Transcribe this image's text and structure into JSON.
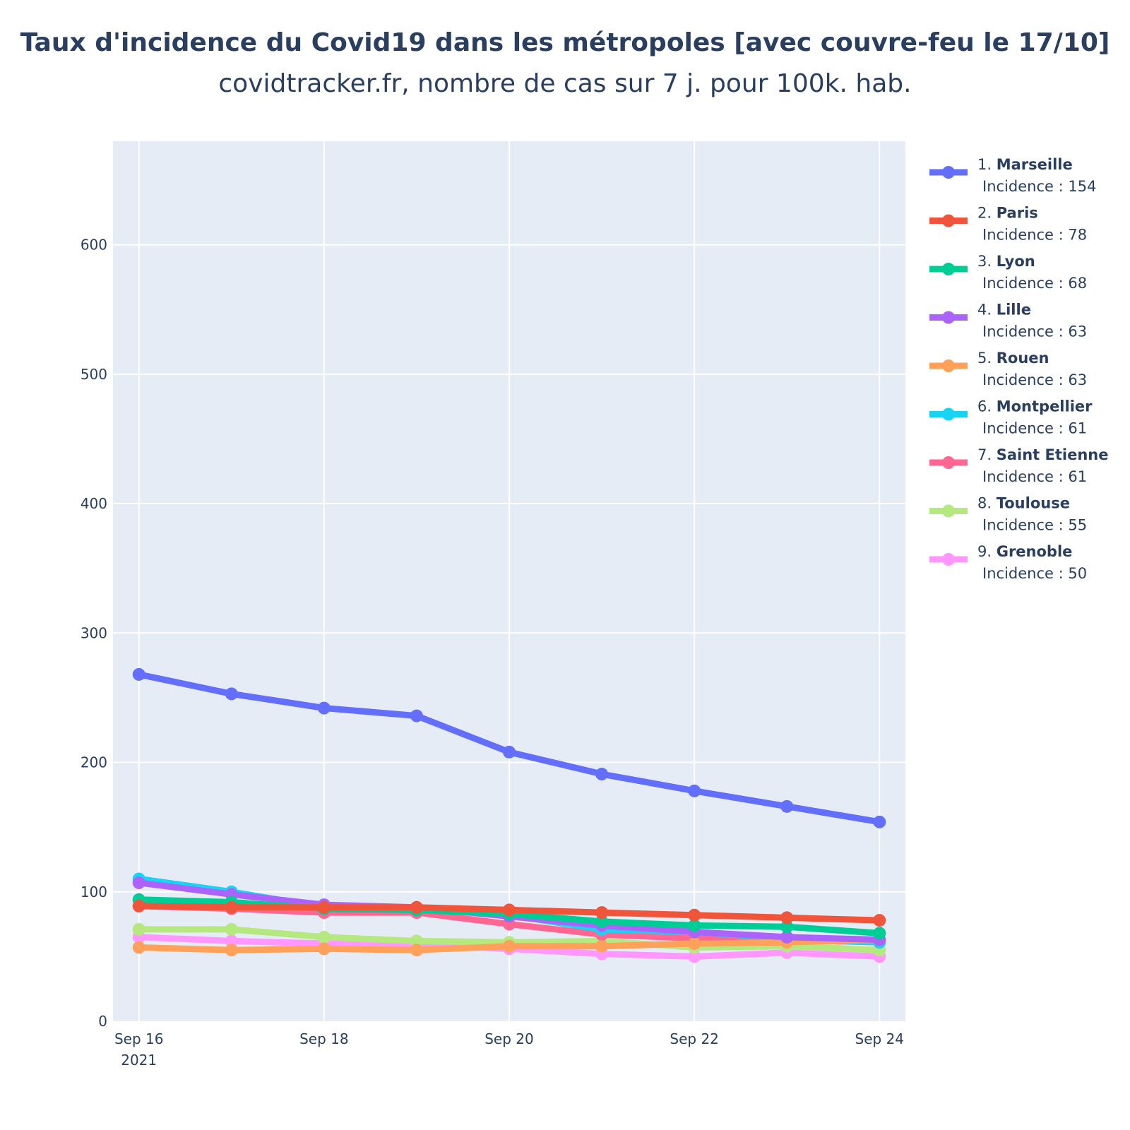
{
  "chart_data": {
    "type": "line",
    "title": "Taux d'incidence du Covid19 dans les métropoles [avec couvre-feu le 17/10]",
    "subtitle": "covidtracker.fr, nombre de cas sur 7 j. pour 100k. hab.",
    "x": [
      "2021-09-16",
      "2021-09-17",
      "2021-09-18",
      "2021-09-19",
      "2021-09-20",
      "2021-09-21",
      "2021-09-22",
      "2021-09-23",
      "2021-09-24"
    ],
    "x_ticks": [
      {
        "date": "2021-09-16",
        "label": "Sep 16",
        "sublabel": "2021"
      },
      {
        "date": "2021-09-18",
        "label": "Sep 18",
        "sublabel": ""
      },
      {
        "date": "2021-09-20",
        "label": "Sep 20",
        "sublabel": ""
      },
      {
        "date": "2021-09-22",
        "label": "Sep 22",
        "sublabel": ""
      },
      {
        "date": "2021-09-24",
        "label": "Sep 24",
        "sublabel": ""
      }
    ],
    "xlim": [
      "2021-09-15.72",
      "2021-09-24.28"
    ],
    "ylim": [
      0,
      680
    ],
    "y_ticks": [
      0,
      100,
      200,
      300,
      400,
      500,
      600
    ],
    "grid": true,
    "legend_position": "right",
    "legend_prefix": "Incidence : ",
    "series": [
      {
        "rank": "1.",
        "name": "Marseille",
        "incidence": "154",
        "color": "#636efa",
        "values": [
          268,
          253,
          242,
          236,
          208,
          191,
          178,
          166,
          154
        ]
      },
      {
        "rank": "2.",
        "name": "Paris",
        "incidence": "78",
        "color": "#ef553b",
        "values": [
          89,
          88,
          88,
          88,
          86,
          84,
          82,
          80,
          78
        ]
      },
      {
        "rank": "3.",
        "name": "Lyon",
        "incidence": "68",
        "color": "#00cc96",
        "values": [
          94,
          92,
          87,
          86,
          83,
          77,
          74,
          73,
          68
        ]
      },
      {
        "rank": "4.",
        "name": "Lille",
        "incidence": "63",
        "color": "#ab63fa",
        "values": [
          107,
          98,
          90,
          88,
          81,
          74,
          69,
          65,
          63
        ]
      },
      {
        "rank": "5.",
        "name": "Rouen",
        "incidence": "63",
        "color": "#ffa15a",
        "values": [
          57,
          55,
          56,
          55,
          58,
          58,
          60,
          61,
          63
        ]
      },
      {
        "rank": "6.",
        "name": "Montpellier",
        "incidence": "61",
        "color": "#19d3f3",
        "values": [
          110,
          100,
          88,
          87,
          82,
          71,
          69,
          64,
          61
        ]
      },
      {
        "rank": "7.",
        "name": "Saint Etienne",
        "incidence": "61",
        "color": "#ff6692",
        "values": [
          89,
          87,
          84,
          84,
          75,
          67,
          64,
          63,
          61
        ]
      },
      {
        "rank": "8.",
        "name": "Toulouse",
        "incidence": "55",
        "color": "#b6e880",
        "values": [
          71,
          71,
          65,
          62,
          61,
          62,
          57,
          58,
          55
        ]
      },
      {
        "rank": "9.",
        "name": "Grenoble",
        "incidence": "50",
        "color": "#ff97ff",
        "values": [
          65,
          62,
          60,
          59,
          56,
          52,
          50,
          53,
          50
        ]
      }
    ],
    "colors": {
      "plot_bg": "#e5ecf6",
      "grid": "#ffffff",
      "text": "#2a3f5f"
    }
  }
}
